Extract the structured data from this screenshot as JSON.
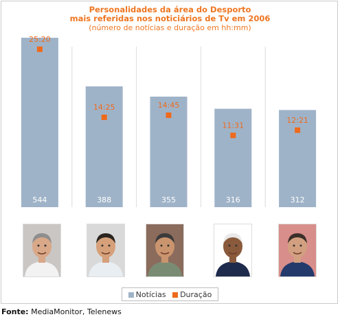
{
  "chart_data": {
    "type": "bar",
    "title_lines": [
      "Personalidades da área do Desporto",
      "mais referidas nos noticiários de Tv em 2006"
    ],
    "subtitle": "(número de notícias e duração em hh:mm)",
    "categories": [
      "1",
      "2",
      "3",
      "4",
      "5"
    ],
    "series": [
      {
        "name": "Notícias",
        "type": "bar",
        "values": [
          544,
          388,
          355,
          316,
          312
        ],
        "labels": [
          "544",
          "388",
          "355",
          "316",
          "312"
        ]
      },
      {
        "name": "Duração",
        "type": "point",
        "values_minutes": [
          1520,
          865,
          885,
          691,
          741
        ],
        "labels": [
          "25:20",
          "14:25",
          "14:45",
          "11:31",
          "12:21"
        ]
      }
    ],
    "ylim": [
      0,
      630
    ],
    "duration_range_minutes": [
      0,
      1730
    ],
    "grid": "vertical separators",
    "legend_position": "bottom"
  },
  "colors": {
    "bar": "#9fb3c8",
    "marker": "#ee6a1d",
    "title": "#ee7621",
    "grid": "#dcdcdc"
  },
  "legend": {
    "noticias": "Notícias",
    "duracao": "Duração"
  },
  "source": {
    "label": "Fonte:",
    "text": "MediaMonitor, Telenews"
  },
  "photos": [
    "photo-person-1",
    "photo-person-2",
    "photo-person-3",
    "photo-person-4",
    "photo-person-5"
  ]
}
